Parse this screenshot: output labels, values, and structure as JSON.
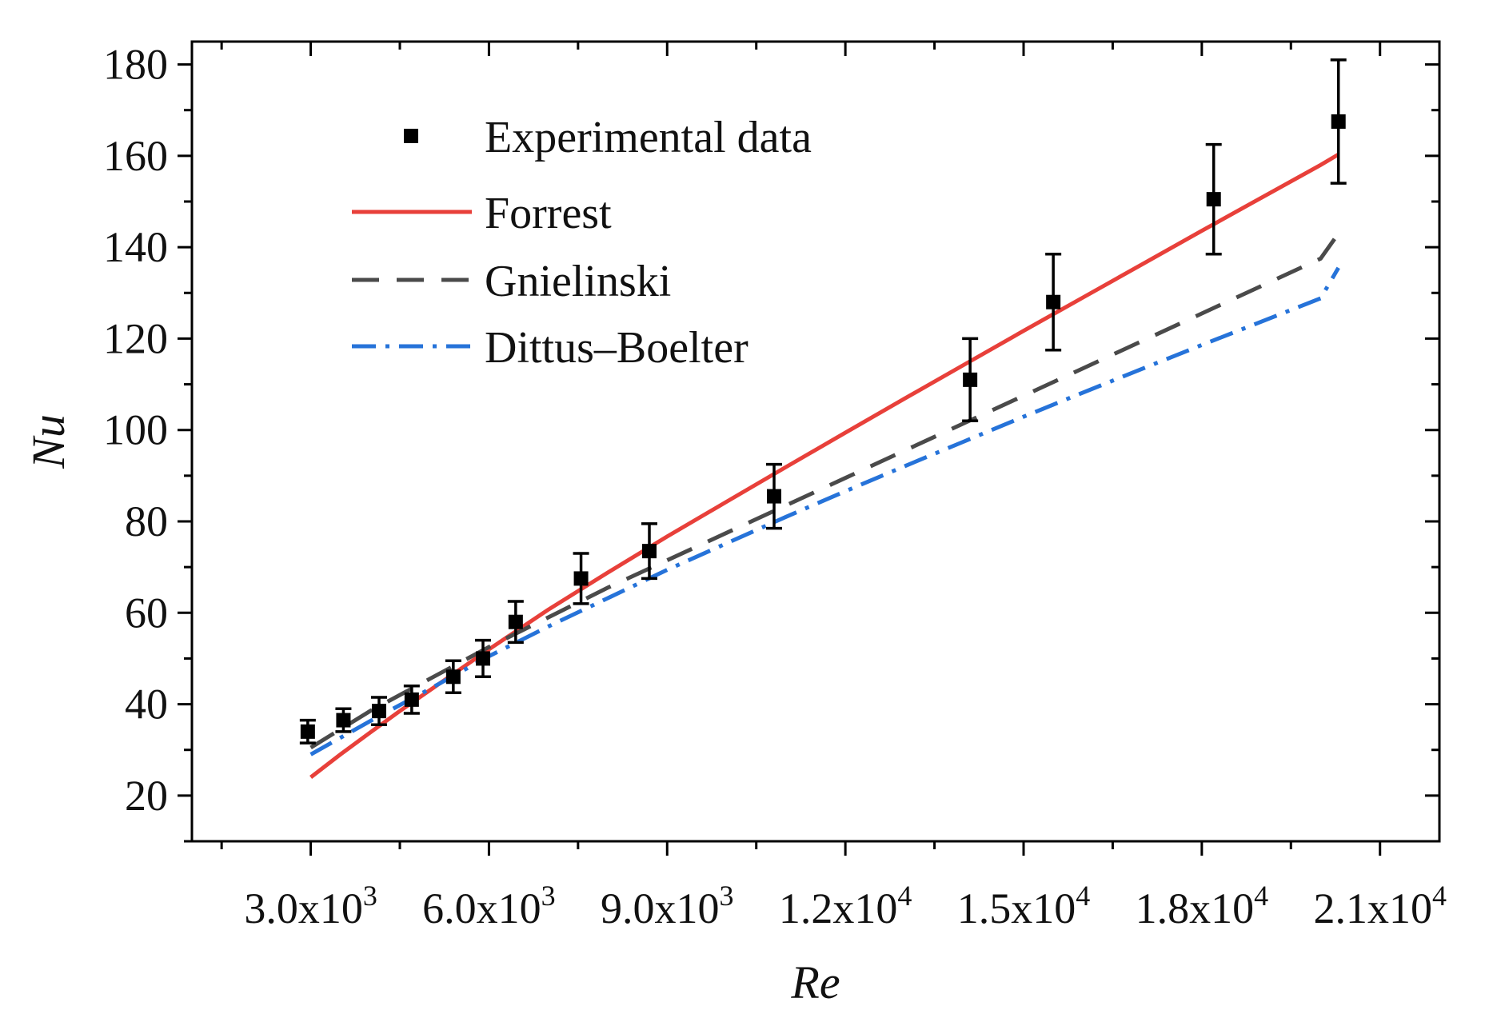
{
  "chart_data": {
    "type": "line",
    "title": "",
    "xlabel": "Re",
    "ylabel": "Nu",
    "xlim": [
      1000,
      22000
    ],
    "ylim": [
      10,
      185
    ],
    "x_ticks": [
      {
        "value": 3000,
        "mant": "3.0x10",
        "exp": "3"
      },
      {
        "value": 6000,
        "mant": "6.0x10",
        "exp": "3"
      },
      {
        "value": 9000,
        "mant": "9.0x10",
        "exp": "3"
      },
      {
        "value": 12000,
        "mant": "1.2x10",
        "exp": "4"
      },
      {
        "value": 15000,
        "mant": "1.5x10",
        "exp": "4"
      },
      {
        "value": 18000,
        "mant": "1.8x10",
        "exp": "4"
      },
      {
        "value": 21000,
        "mant": "2.1x10",
        "exp": "4"
      }
    ],
    "y_ticks": [
      20,
      40,
      60,
      80,
      100,
      120,
      140,
      160,
      180
    ],
    "legend": {
      "position": "top-left",
      "entries": [
        "Experimental data",
        "Forrest",
        "Gnielinski",
        "Dittus–Boelter"
      ]
    },
    "series": [
      {
        "name": "Experimental data",
        "kind": "scatter_errorbar",
        "color": "#000000",
        "points": [
          {
            "x": 2950,
            "y": 34,
            "err": 2.5
          },
          {
            "x": 3550,
            "y": 36.5,
            "err": 2.5
          },
          {
            "x": 4150,
            "y": 38.5,
            "err": 3
          },
          {
            "x": 4700,
            "y": 41,
            "err": 3
          },
          {
            "x": 5400,
            "y": 46,
            "err": 3.5
          },
          {
            "x": 5900,
            "y": 50,
            "err": 4
          },
          {
            "x": 6450,
            "y": 58,
            "err": 4.5
          },
          {
            "x": 7550,
            "y": 67.5,
            "err": 5.5
          },
          {
            "x": 8700,
            "y": 73.5,
            "err": 6
          },
          {
            "x": 10800,
            "y": 85.5,
            "err": 7
          },
          {
            "x": 14100,
            "y": 111,
            "err": 9
          },
          {
            "x": 15500,
            "y": 128,
            "err": 10.5
          },
          {
            "x": 18200,
            "y": 150.5,
            "err": 12
          },
          {
            "x": 20300,
            "y": 167.5,
            "err": 13.5
          }
        ]
      },
      {
        "name": "Forrest",
        "kind": "line",
        "color": "#e8403a",
        "dash": "",
        "x": [
          3000,
          3500,
          4000,
          4500,
          5000,
          5500,
          6000,
          7000,
          8000,
          9000,
          10000,
          11000,
          12000,
          13000,
          14000,
          15000,
          16000,
          17000,
          18000,
          19000,
          20000,
          20300
        ],
        "y": [
          24,
          29,
          33.8,
          38.5,
          43,
          47.5,
          52,
          60.7,
          68.8,
          76.7,
          84.3,
          91.9,
          99.4,
          106.9,
          114.3,
          121.7,
          129,
          136.3,
          143.6,
          150.8,
          158,
          160.3
        ]
      },
      {
        "name": "Gnielinski",
        "kind": "line",
        "color": "#4a4a4a",
        "dash": "34,22",
        "x": [
          3000,
          4000,
          5000,
          6000,
          7000,
          8000,
          9000,
          10000,
          11000,
          12000,
          13000,
          14000,
          15000,
          16000,
          17000,
          18000,
          19000,
          20000,
          20300
        ],
        "y": [
          30.5,
          38.5,
          45.5,
          52.5,
          59,
          65.5,
          71.5,
          77.5,
          83.5,
          89.5,
          95.5,
          101.5,
          107.5,
          113.5,
          119.5,
          125.5,
          131.5,
          137.5,
          143
        ]
      },
      {
        "name": "Dittus–Boelter",
        "kind": "line",
        "color": "#2673d9",
        "dash": "30,12,5,12",
        "x": [
          3000,
          4000,
          5000,
          6000,
          7000,
          8000,
          9000,
          10000,
          11000,
          12000,
          13000,
          14000,
          15000,
          16000,
          17000,
          18000,
          19000,
          20000,
          20300
        ],
        "y": [
          29,
          36.3,
          43.3,
          50.5,
          57,
          63.2,
          69.4,
          75.2,
          81,
          86.6,
          92.1,
          97.5,
          102.9,
          108.2,
          113.4,
          118.6,
          123.7,
          128.8,
          135.5
        ]
      }
    ]
  }
}
